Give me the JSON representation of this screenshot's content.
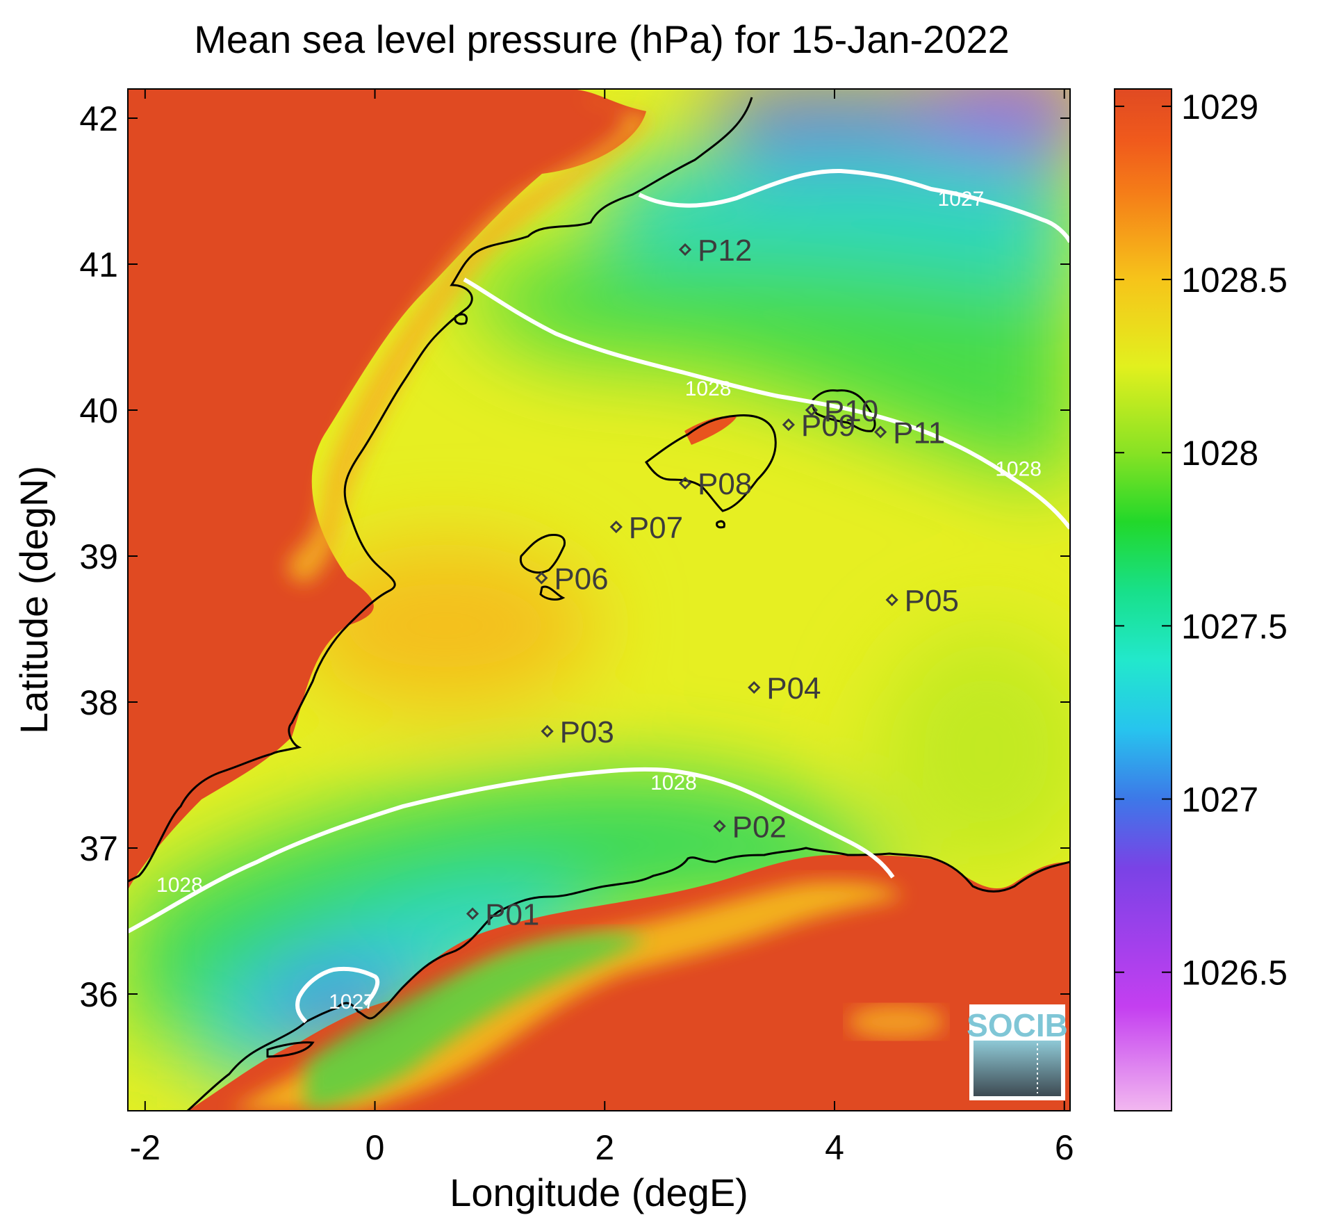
{
  "chart_data": {
    "type": "heatmap",
    "title": "Mean sea level pressure (hPa) for 15-Jan-2022",
    "xlabel": "Longitude (degE)",
    "ylabel": "Latitude (degN)",
    "xlim": [
      -2.15,
      6.05
    ],
    "ylim": [
      35.2,
      42.2
    ],
    "xticks": [
      -2,
      0,
      2,
      4,
      6
    ],
    "yticks": [
      36,
      37,
      38,
      39,
      40,
      41,
      42
    ],
    "colorbar": {
      "range": [
        1026.1,
        1029.05
      ],
      "ticks": [
        1026.5,
        1027,
        1027.5,
        1028,
        1028.5,
        1029
      ],
      "colormap": [
        {
          "value": 1026.1,
          "color": "#f2b8f0"
        },
        {
          "value": 1026.4,
          "color": "#c43ff0"
        },
        {
          "value": 1026.8,
          "color": "#7a42e6"
        },
        {
          "value": 1027.0,
          "color": "#3d78e8"
        },
        {
          "value": 1027.2,
          "color": "#27c4ee"
        },
        {
          "value": 1027.4,
          "color": "#22e8cc"
        },
        {
          "value": 1027.6,
          "color": "#18e08a"
        },
        {
          "value": 1027.8,
          "color": "#22d82a"
        },
        {
          "value": 1028.0,
          "color": "#88e224"
        },
        {
          "value": 1028.25,
          "color": "#e2f01e"
        },
        {
          "value": 1028.5,
          "color": "#f6c41a"
        },
        {
          "value": 1028.75,
          "color": "#f57d18"
        },
        {
          "value": 1028.9,
          "color": "#f05a1c"
        },
        {
          "value": 1029.05,
          "color": "#e04a22"
        }
      ]
    },
    "contour_labels": [
      {
        "text": "1027",
        "lon": 5.1,
        "lat": 41.4
      },
      {
        "text": "1028",
        "lon": 2.9,
        "lat": 40.1
      },
      {
        "text": "1028",
        "lon": 5.6,
        "lat": 39.55
      },
      {
        "text": "1028",
        "lon": 2.6,
        "lat": 37.4
      },
      {
        "text": "1028",
        "lon": -1.7,
        "lat": 36.7
      },
      {
        "text": "1027",
        "lon": -0.2,
        "lat": 35.9
      }
    ],
    "stations": [
      {
        "name": "P01",
        "lon": 0.85,
        "lat": 36.55
      },
      {
        "name": "P02",
        "lon": 3.0,
        "lat": 37.15
      },
      {
        "name": "P03",
        "lon": 1.5,
        "lat": 37.8
      },
      {
        "name": "P04",
        "lon": 3.3,
        "lat": 38.1
      },
      {
        "name": "P05",
        "lon": 4.5,
        "lat": 38.7
      },
      {
        "name": "P06",
        "lon": 1.45,
        "lat": 38.85
      },
      {
        "name": "P07",
        "lon": 2.1,
        "lat": 39.2
      },
      {
        "name": "P08",
        "lon": 2.7,
        "lat": 39.5
      },
      {
        "name": "P09",
        "lon": 3.6,
        "lat": 39.9
      },
      {
        "name": "P10",
        "lon": 3.8,
        "lat": 40.0
      },
      {
        "name": "P11",
        "lon": 4.4,
        "lat": 39.85
      },
      {
        "name": "P12",
        "lon": 2.7,
        "lat": 41.1
      }
    ]
  },
  "logo": {
    "text": "SOCIB"
  },
  "colors": {
    "land": "#e04a22",
    "coastline": "#000000",
    "contour": "#ffffff",
    "station_marker": "#3c3c3c"
  }
}
